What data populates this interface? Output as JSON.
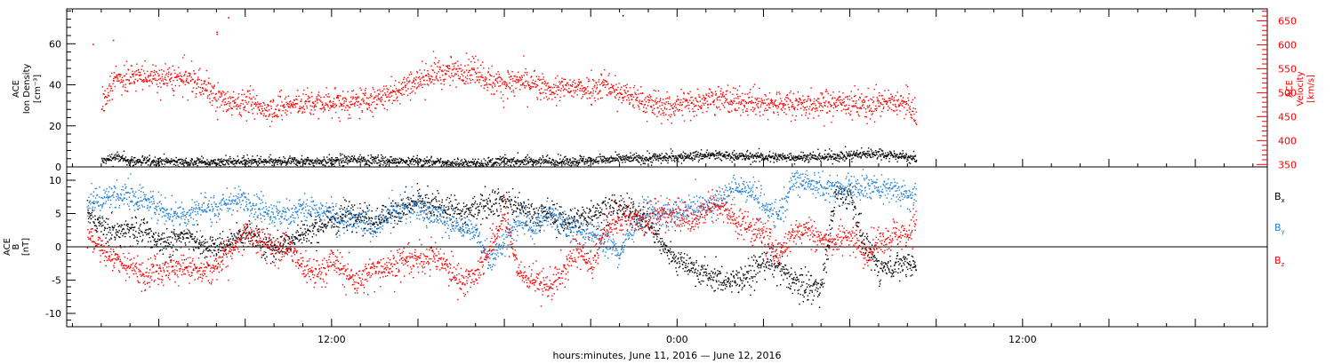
{
  "chart_data": [
    {
      "type": "scatter",
      "panel": "top",
      "ylabel_left": [
        "ACE",
        "Ion Density",
        "[cm⁻³]"
      ],
      "ylabel_right": [
        "ACE",
        "Velocity",
        "[km/s]"
      ],
      "ylim_left": [
        0,
        77
      ],
      "ylim_right": [
        345,
        675
      ],
      "left_ticks": [
        "0",
        "20",
        "40",
        "60"
      ],
      "right_ticks": [
        "350",
        "400",
        "450",
        "500",
        "550",
        "600",
        "650"
      ],
      "colors": {
        "density": "#000000",
        "velocity": "#ff0000"
      },
      "series": [
        {
          "name": "Ion Density",
          "axis": "left",
          "color": "#000000",
          "x": [
            -20,
            -19.5,
            -19,
            -18,
            -17,
            -16,
            -15,
            -14,
            -13,
            -12,
            -11,
            -10,
            -9,
            -8,
            -7,
            -6,
            -5,
            -4,
            -3,
            -2,
            -1,
            0,
            1,
            2,
            3,
            4,
            5,
            6,
            7,
            7.5,
            8,
            8.3
          ],
          "y": [
            3,
            5,
            3,
            3,
            2.5,
            2.5,
            3,
            2.5,
            3,
            3,
            4,
            3,
            3,
            2,
            2,
            3,
            3,
            3,
            3.5,
            4,
            4.5,
            5,
            6,
            5.5,
            5,
            5,
            5,
            6,
            7,
            6,
            5,
            4
          ],
          "jitter": 1.2
        },
        {
          "name": "Velocity",
          "axis": "right",
          "color": "#ff0000",
          "x": [
            -20,
            -19.7,
            -19.5,
            -19,
            -18.5,
            -18,
            -17.5,
            -17,
            -16.5,
            -16,
            -15.5,
            -15,
            -14.5,
            -14,
            -13.5,
            -13,
            -12.5,
            -12,
            -11.5,
            -11,
            -10.5,
            -10,
            -9.5,
            -9,
            -8.5,
            -8,
            -7.5,
            -7,
            -6.5,
            -6,
            -5.5,
            -5,
            -4.5,
            -4,
            -3.5,
            -3,
            -2.5,
            -2,
            -1.5,
            -1,
            -0.5,
            0,
            0.5,
            1,
            1.5,
            2,
            2.5,
            3,
            3.5,
            4,
            4.5,
            5,
            5.5,
            6,
            6.5,
            7,
            7.5,
            8,
            8.3
          ],
          "y": [
            470,
            520,
            530,
            535,
            535,
            530,
            530,
            530,
            520,
            490,
            480,
            480,
            470,
            468,
            475,
            480,
            478,
            480,
            478,
            480,
            488,
            500,
            515,
            530,
            540,
            545,
            545,
            548,
            525,
            520,
            525,
            520,
            505,
            510,
            510,
            512,
            520,
            500,
            490,
            480,
            470,
            475,
            480,
            490,
            488,
            482,
            480,
            478,
            478,
            480,
            476,
            475,
            480,
            478,
            475,
            478,
            480,
            475,
            450
          ],
          "jitter": 14
        }
      ],
      "outliers": [
        {
          "x": -20.3,
          "y": 60
        },
        {
          "x": -19.6,
          "y": 62
        },
        {
          "x": -15.6,
          "y": 73
        },
        {
          "x": -16.0,
          "y": 65
        },
        {
          "x": -16.0,
          "y": 66
        },
        {
          "x": -1.9,
          "y": 74
        }
      ]
    },
    {
      "type": "scatter",
      "panel": "bottom",
      "ylabel": [
        "ACE",
        "B",
        "[nT]"
      ],
      "ylim": [
        -12,
        12
      ],
      "left_ticks": [
        "-10",
        "-5",
        "0",
        "5",
        "10"
      ],
      "legend": [
        {
          "name": "B",
          "sub": "x",
          "color": "#000000"
        },
        {
          "name": "B",
          "sub": "y",
          "color": "#1e7fd6"
        },
        {
          "name": "B",
          "sub": "z",
          "color": "#ff0000"
        }
      ],
      "series": [
        {
          "name": "Bx",
          "color": "#000000",
          "x": [
            -20.5,
            -20,
            -19.5,
            -19,
            -18.5,
            -18,
            -17.5,
            -17,
            -16.5,
            -16,
            -15.5,
            -15,
            -14.5,
            -14,
            -13.5,
            -13,
            -12.5,
            -12,
            -11.5,
            -11,
            -10.5,
            -10,
            -9.5,
            -9,
            -8.5,
            -8,
            -7.5,
            -7,
            -6.5,
            -6,
            -5.5,
            -5,
            -4.5,
            -4,
            -3.5,
            -3,
            -2.5,
            -2,
            -1.5,
            -1,
            -0.5,
            0,
            0.5,
            1,
            1.5,
            2,
            2.5,
            3,
            3.5,
            4,
            4.5,
            5,
            5.5,
            6,
            6.5,
            7,
            7.5,
            8,
            8.3
          ],
          "y": [
            5,
            3,
            2,
            3,
            2,
            1,
            1,
            2,
            0,
            0,
            1,
            2,
            1,
            0,
            1,
            2,
            3,
            4,
            5,
            5,
            4,
            5,
            6,
            7,
            6,
            6,
            5,
            6,
            7,
            7,
            6,
            5,
            5,
            4,
            4,
            5,
            6,
            6,
            5,
            4,
            0,
            -2,
            -3,
            -4,
            -5,
            -5,
            -4,
            -2,
            -3,
            -5,
            -6,
            -6,
            8,
            8,
            0,
            -3,
            -3,
            -2,
            -3
          ],
          "jitter": 1.0
        },
        {
          "name": "By",
          "color": "#1e7fd6",
          "x": [
            -20.5,
            -20,
            -19.5,
            -19,
            -18.5,
            -18,
            -17.5,
            -17,
            -16.5,
            -16,
            -15.5,
            -15,
            -14.5,
            -14,
            -13.5,
            -13,
            -12.5,
            -12,
            -11.5,
            -11,
            -10.5,
            -10,
            -9.5,
            -9,
            -8.5,
            -8,
            -7.5,
            -7,
            -6.5,
            -6,
            -5.5,
            -5,
            -4.5,
            -4,
            -3.5,
            -3,
            -2.5,
            -2,
            -1.5,
            -1,
            -0.5,
            0,
            0.5,
            1,
            1.5,
            2,
            2.5,
            3,
            3.5,
            4,
            4.5,
            5,
            5.5,
            6,
            6.5,
            7,
            7.5,
            8,
            8.3
          ],
          "y": [
            7,
            7,
            8,
            8,
            7,
            6,
            5,
            5,
            6,
            6,
            7,
            7,
            6,
            5,
            5,
            6,
            5,
            5,
            4,
            4,
            3,
            5,
            6,
            6,
            5,
            4,
            3,
            2,
            -2,
            1,
            4,
            3,
            5,
            4,
            3,
            2,
            1,
            -1,
            4,
            5,
            5,
            5,
            6,
            6,
            7,
            9,
            9,
            6,
            5,
            10,
            10,
            9,
            9,
            9,
            9,
            9,
            9,
            8,
            8
          ],
          "jitter": 1.0
        },
        {
          "name": "Bz",
          "color": "#ff0000",
          "x": [
            -20.5,
            -20,
            -19.5,
            -19,
            -18.5,
            -18,
            -17.5,
            -17,
            -16.5,
            -16,
            -15.5,
            -15,
            -14.5,
            -14,
            -13.5,
            -13,
            -12.5,
            -12,
            -11.5,
            -11,
            -10.5,
            -10,
            -9.5,
            -9,
            -8.5,
            -8,
            -7.5,
            -7,
            -6.5,
            -6,
            -5.5,
            -5,
            -4.5,
            -4,
            -3.5,
            -3,
            -2.5,
            -2,
            -1.5,
            -1,
            -0.5,
            0,
            0.5,
            1,
            1.5,
            2,
            2.5,
            3,
            3.5,
            4,
            4.5,
            5,
            5.5,
            6,
            6.5,
            7,
            7.5,
            8,
            8.3
          ],
          "y": [
            2,
            0,
            -2,
            -3,
            -4,
            -3,
            -3,
            -3,
            -4,
            -3,
            0,
            2,
            1,
            0,
            0,
            -3,
            -4,
            -2,
            -4,
            -5,
            -3,
            -3,
            -2,
            -2,
            -1,
            -3,
            -5,
            -4,
            0,
            5,
            -4,
            -5,
            -6,
            -4,
            0,
            -3,
            3,
            4,
            5,
            4,
            5,
            5,
            4,
            6,
            6,
            4,
            3,
            2,
            -1,
            2,
            3,
            1,
            1,
            2,
            -1,
            1,
            2,
            2,
            4
          ],
          "jitter": 1.1
        }
      ]
    }
  ],
  "xaxis": {
    "label": "hours:minutes, June 11, 2016 — June 12, 2016",
    "xlim": [
      -21.2,
      20.5
    ],
    "labeled_ticks": [
      {
        "hour": -12,
        "label": "12:00"
      },
      {
        "hour": 0,
        "label": "0:00"
      },
      {
        "hour": 12,
        "label": "12:00"
      }
    ],
    "major_tick_hours": [
      -18,
      -15,
      -12,
      -9,
      -6,
      -3,
      0,
      3,
      6,
      9,
      12,
      15,
      18
    ]
  }
}
